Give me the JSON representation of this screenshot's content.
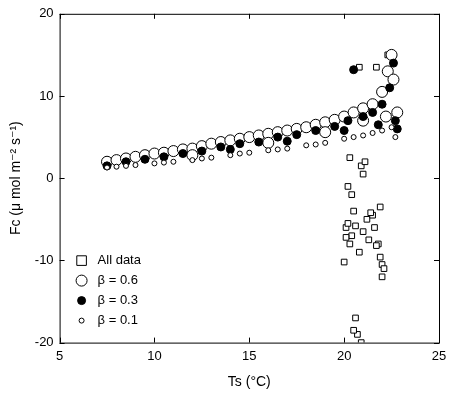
{
  "chart_data": {
    "type": "scatter",
    "x_label": "Ts (°C)",
    "y_label": "Fc (μ mol m⁻² s⁻¹)",
    "xlim": [
      5,
      25
    ],
    "xticks": [
      5,
      10,
      15,
      20,
      25
    ],
    "ylim": [
      -20,
      20
    ],
    "yticks": [
      -20,
      -10,
      0,
      10,
      20
    ],
    "grid": false,
    "legend": "lower left",
    "series": [
      {
        "name": "All data",
        "color": "#000000",
        "marker": "square",
        "x": [
          20.0,
          20.1,
          20.2,
          20.3,
          20.4,
          20.5,
          20.6,
          20.7,
          20.5,
          20.9,
          20.8,
          21.0,
          21.2,
          21.3,
          21.5,
          21.6,
          21.8,
          21.9,
          22.0,
          22.1,
          22.0,
          21.7,
          20.9,
          21.0,
          21.1,
          20.3,
          20.2,
          20.8,
          21.7,
          22.3,
          20.4,
          20.6,
          21.4,
          20.1,
          21.9
        ],
        "y": [
          -10.2,
          -6.0,
          -5.5,
          -8.0,
          -7.0,
          -4.0,
          -17.0,
          -19.0,
          -18.5,
          -20.0,
          -9.0,
          -6.5,
          -5.0,
          -7.5,
          -4.5,
          -6.0,
          -8.0,
          -3.5,
          -10.5,
          -11.0,
          -12.0,
          -8.2,
          1.5,
          0.5,
          2.0,
          2.5,
          -1.0,
          13.5,
          13.5,
          15.0,
          -2.0,
          -5.8,
          -4.2,
          -7.2,
          -9.6
        ]
      },
      {
        "name": "β = 0.6",
        "color": "#000000",
        "marker": "circle",
        "x": [
          7.5,
          8.0,
          8.5,
          9.0,
          9.5,
          10.0,
          10.5,
          11.0,
          11.5,
          12.0,
          12.5,
          13.0,
          13.5,
          14.0,
          14.5,
          15.0,
          15.5,
          16.0,
          16.5,
          17.0,
          17.5,
          18.0,
          18.5,
          19.0,
          19.5,
          20.0,
          20.5,
          21.0,
          21.5,
          22.0,
          22.3,
          22.5,
          22.6,
          22.8,
          12.0,
          16.0,
          19.0,
          21.0,
          22.2
        ],
        "y": [
          2.0,
          2.2,
          2.4,
          2.6,
          2.8,
          3.0,
          3.1,
          3.3,
          3.5,
          3.6,
          3.9,
          4.2,
          4.4,
          4.6,
          4.8,
          5.0,
          5.2,
          5.4,
          5.6,
          5.8,
          6.0,
          6.2,
          6.5,
          6.8,
          7.1,
          7.5,
          8.0,
          8.5,
          9.0,
          10.5,
          13.0,
          15.0,
          12.0,
          8.0,
          2.8,
          4.3,
          5.6,
          7.0,
          7.5
        ]
      },
      {
        "name": "β = 0.3",
        "color": "#000000",
        "marker": "dot",
        "x": [
          7.5,
          8.5,
          9.5,
          10.5,
          11.5,
          12.5,
          13.5,
          14.5,
          15.5,
          16.5,
          17.5,
          18.5,
          19.5,
          20.2,
          20.5,
          21.0,
          21.5,
          22.0,
          22.4,
          22.6,
          22.7,
          22.8,
          14.0,
          17.0,
          20.0,
          21.8
        ],
        "y": [
          1.5,
          2.0,
          2.3,
          2.6,
          3.0,
          3.3,
          3.8,
          4.2,
          4.4,
          5.0,
          5.3,
          5.8,
          6.3,
          7.0,
          13.2,
          7.5,
          8.0,
          9.0,
          11.0,
          14.0,
          7.0,
          6.0,
          3.5,
          4.5,
          5.8,
          6.5
        ]
      },
      {
        "name": "β = 0.1",
        "color": "#000000",
        "marker": "small_circle",
        "x": [
          7.5,
          8.0,
          9.0,
          10.0,
          11.0,
          12.0,
          13.0,
          14.0,
          15.0,
          16.0,
          17.0,
          18.0,
          19.0,
          20.0,
          21.0,
          22.0,
          22.5,
          22.7,
          8.5,
          10.5,
          12.5,
          14.5,
          16.5,
          18.5,
          20.5,
          21.5
        ],
        "y": [
          1.3,
          1.4,
          1.6,
          1.8,
          2.0,
          2.2,
          2.5,
          2.8,
          3.1,
          3.4,
          3.6,
          4.0,
          4.3,
          4.8,
          5.2,
          5.8,
          6.2,
          5.0,
          1.5,
          1.9,
          2.4,
          3.0,
          3.5,
          4.1,
          5.0,
          5.5
        ]
      }
    ]
  }
}
